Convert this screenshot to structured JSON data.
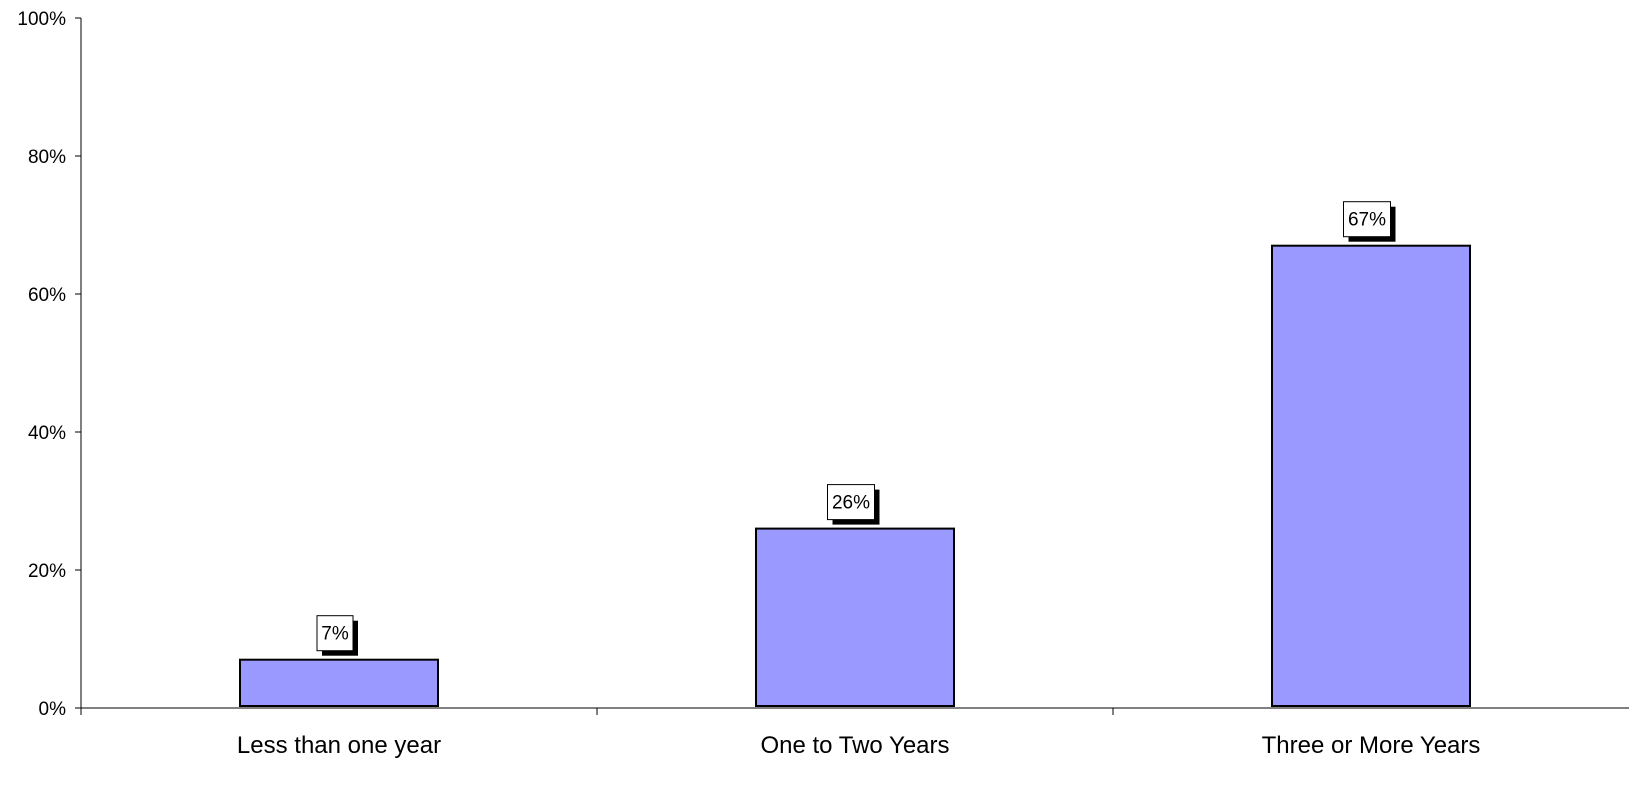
{
  "chart_data": {
    "type": "bar",
    "title": "",
    "xlabel": "",
    "ylabel": "",
    "categories": [
      "Less than one year",
      "One to Two Years",
      "Three or More Years"
    ],
    "values": [
      7,
      26,
      67
    ],
    "data_labels": [
      "7%",
      "26%",
      "67%"
    ],
    "ylim": [
      0,
      100
    ],
    "yticks": [
      0,
      20,
      40,
      60,
      80,
      100
    ],
    "ytick_labels": [
      "0%",
      "20%",
      "40%",
      "60%",
      "80%",
      "100%"
    ],
    "grid": false,
    "legend": "none",
    "bar_color": "#9999FF",
    "bar_stroke": "#000000"
  }
}
